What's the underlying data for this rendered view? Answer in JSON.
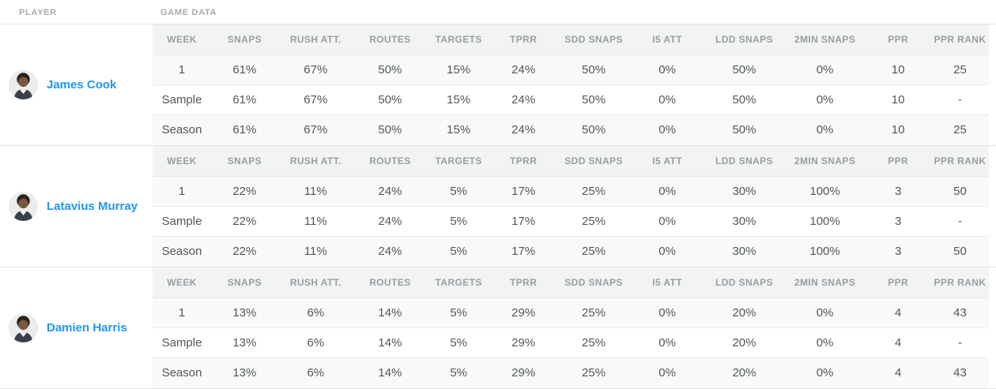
{
  "header": {
    "player_label": "PLAYER",
    "game_data_label": "GAME DATA"
  },
  "columns": [
    "WEEK",
    "SNAPS",
    "RUSH ATT.",
    "ROUTES",
    "TARGETS",
    "TPRR",
    "SDD SNAPS",
    "I5 ATT",
    "LDD SNAPS",
    "2MIN SNAPS",
    "PPR",
    "PPR RANK"
  ],
  "players": [
    {
      "name": "James Cook",
      "avatar_icon": "player-headshot-icon",
      "rows": [
        [
          "1",
          "61%",
          "67%",
          "50%",
          "15%",
          "24%",
          "50%",
          "0%",
          "50%",
          "0%",
          "10",
          "25"
        ],
        [
          "Sample",
          "61%",
          "67%",
          "50%",
          "15%",
          "24%",
          "50%",
          "0%",
          "50%",
          "0%",
          "10",
          "-"
        ],
        [
          "Season",
          "61%",
          "67%",
          "50%",
          "15%",
          "24%",
          "50%",
          "0%",
          "50%",
          "0%",
          "10",
          "25"
        ]
      ]
    },
    {
      "name": "Latavius Murray",
      "avatar_icon": "player-headshot-icon",
      "rows": [
        [
          "1",
          "22%",
          "11%",
          "24%",
          "5%",
          "17%",
          "25%",
          "0%",
          "30%",
          "100%",
          "3",
          "50"
        ],
        [
          "Sample",
          "22%",
          "11%",
          "24%",
          "5%",
          "17%",
          "25%",
          "0%",
          "30%",
          "100%",
          "3",
          "-"
        ],
        [
          "Season",
          "22%",
          "11%",
          "24%",
          "5%",
          "17%",
          "25%",
          "0%",
          "30%",
          "100%",
          "3",
          "50"
        ]
      ]
    },
    {
      "name": "Damien Harris",
      "avatar_icon": "player-headshot-icon",
      "rows": [
        [
          "1",
          "13%",
          "6%",
          "14%",
          "5%",
          "29%",
          "25%",
          "0%",
          "20%",
          "0%",
          "4",
          "43"
        ],
        [
          "Sample",
          "13%",
          "6%",
          "14%",
          "5%",
          "29%",
          "25%",
          "0%",
          "20%",
          "0%",
          "4",
          "-"
        ],
        [
          "Season",
          "13%",
          "6%",
          "14%",
          "5%",
          "29%",
          "25%",
          "0%",
          "20%",
          "0%",
          "4",
          "43"
        ]
      ]
    }
  ],
  "colors": {
    "player_name_blue": "#2096f3",
    "column_header_gray": "#989ea4",
    "top_label_gray": "#a6abb0",
    "cell_text_gray": "#53575a",
    "table_header_bg": "#f2f3f3",
    "stripe_row_bg": "#f8f9f9",
    "border_gray": "#e3e5e6",
    "avatar_bg": "#ebecec"
  }
}
